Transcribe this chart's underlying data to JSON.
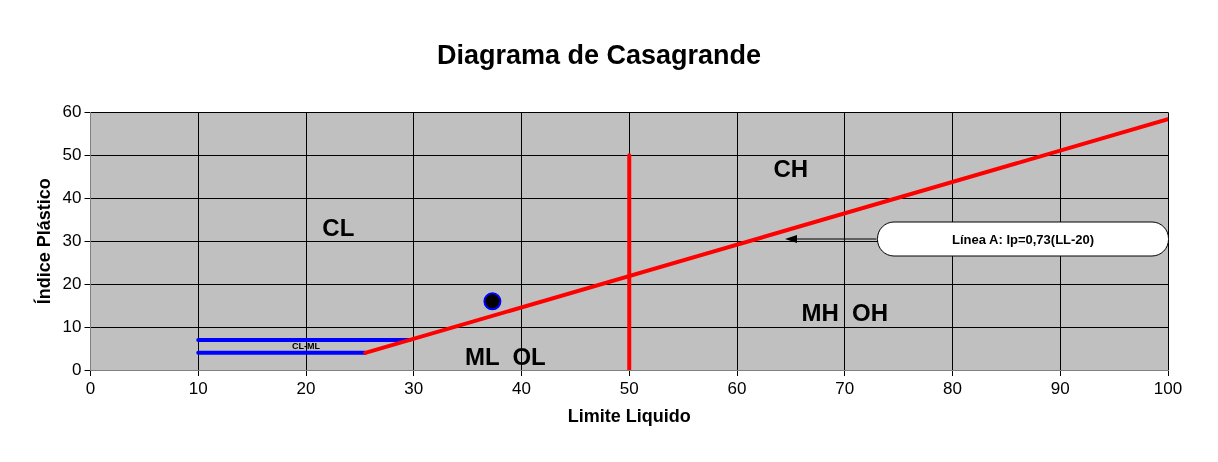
{
  "chart_data": {
    "type": "line",
    "title": "Diagrama de Casagrande",
    "xlabel": "Limite Liquido",
    "ylabel": "Índice Plástico",
    "xlim": [
      0,
      100
    ],
    "xticks": [
      0,
      10,
      20,
      30,
      40,
      50,
      60,
      70,
      80,
      90,
      100
    ],
    "ylim": [
      0,
      60
    ],
    "yticks": [
      0,
      10,
      20,
      30,
      40,
      50,
      60
    ],
    "grid": true,
    "legend": false,
    "line_style": "solid",
    "series": [
      {
        "color": "#ff0000",
        "x": [
          25.5,
          100
        ],
        "values": [
          4,
          58.4
        ]
      },
      {
        "color": "#ff0000",
        "x": [
          50,
          50
        ],
        "values": [
          0,
          50
        ]
      },
      {
        "color": "#0000ff",
        "x": [
          10,
          29.6
        ],
        "values": [
          7,
          7
        ]
      },
      {
        "color": "#0000ff",
        "x": [
          10,
          25.5
        ],
        "values": [
          4,
          4
        ]
      },
      {
        "type": "scatter",
        "marker": "circle",
        "color": "#000000",
        "x": [
          37.3
        ],
        "values": [
          16
        ]
      }
    ],
    "annotations": [
      "CL",
      "CH",
      "MH  OH",
      "ML  OL",
      "CL-ML",
      "Línea A: Ip=0,73(LL-20)"
    ]
  }
}
